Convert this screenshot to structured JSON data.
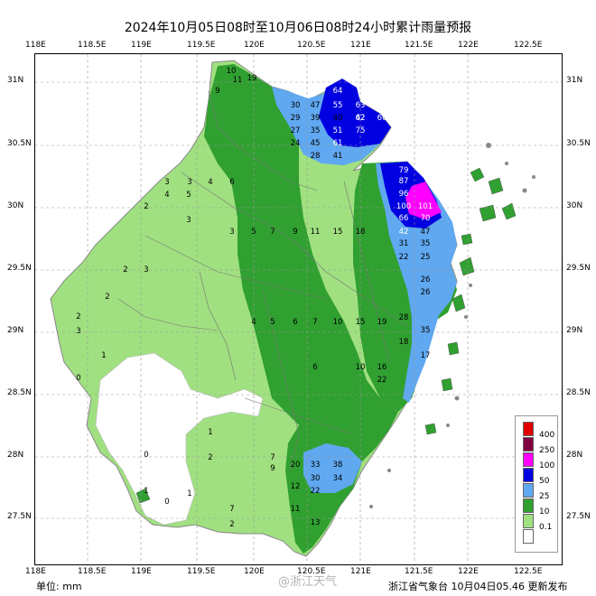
{
  "title": "2024年10月05日08时至10月06日08时24小时累计雨量预报",
  "top_axis": [
    "118E",
    "118.5E",
    "119E",
    "119.5E",
    "120E",
    "120.5E",
    "121E",
    "121.5E",
    "122E",
    "122.5E"
  ],
  "bottom_axis": [
    "118E",
    "118.5E",
    "119E",
    "119.5E",
    "120E",
    "120.5E",
    "121E",
    "121.5E",
    "122E",
    "122.5E"
  ],
  "left_axis": [
    "31N",
    "30.5N",
    "30N",
    "29.5N",
    "29N",
    "28.5N",
    "28N",
    "27.5N"
  ],
  "right_axis": [
    "31N",
    "30.5N",
    "30N",
    "29.5N",
    "29N",
    "28.5N",
    "28N",
    "27.5N"
  ],
  "unit_label": "单位:  mm",
  "source_label": "浙江省气象台  10月04日05.46  更新发布",
  "watermark": "@浙江天气",
  "legend": [
    {
      "label": "400",
      "color": "#e00000"
    },
    {
      "label": "250",
      "color": "#800040"
    },
    {
      "label": "100",
      "color": "#ff00ff"
    },
    {
      "label": "50",
      "color": "#0000e0"
    },
    {
      "label": "25",
      "color": "#60a8f0"
    },
    {
      "label": "10",
      "color": "#30a030"
    },
    {
      "label": "0.1",
      "color": "#a0e080"
    },
    {
      "label": "",
      "color": "#ffffff"
    }
  ],
  "colors": {
    "light_green": "#a0e080",
    "green": "#30a030",
    "light_blue": "#60a8f0",
    "blue": "#0000e0",
    "magenta": "#ff00ff",
    "grid": "#999999"
  },
  "values": [
    [
      "10",
      "255",
      "80"
    ],
    [
      "11",
      "262",
      "90"
    ],
    [
      "19",
      "278",
      "88"
    ],
    [
      "9",
      "240",
      "102"
    ],
    [
      "64",
      "373",
      "102"
    ],
    [
      "55",
      "373",
      "118"
    ],
    [
      "63",
      "398",
      "118"
    ],
    [
      "47",
      "348",
      "118"
    ],
    [
      "30",
      "326",
      "118"
    ],
    [
      "42",
      "398",
      "132"
    ],
    [
      "62",
      "398",
      "132"
    ],
    [
      "60",
      "422",
      "132"
    ],
    [
      "39",
      "348",
      "132"
    ],
    [
      "29",
      "326",
      "132"
    ],
    [
      "40",
      "373",
      "132"
    ],
    [
      "27",
      "326",
      "146"
    ],
    [
      "35",
      "348",
      "146"
    ],
    [
      "51",
      "373",
      "146"
    ],
    [
      "75",
      "398",
      "146"
    ],
    [
      "24",
      "326",
      "160"
    ],
    [
      "45",
      "348",
      "160"
    ],
    [
      "61",
      "373",
      "160"
    ],
    [
      "28",
      "348",
      "174"
    ],
    [
      "41",
      "373",
      "174"
    ],
    [
      "79",
      "446",
      "190"
    ],
    [
      "87",
      "446",
      "202"
    ],
    [
      "96",
      "446",
      "216"
    ],
    [
      "100",
      "446",
      "230"
    ],
    [
      "101",
      "470",
      "230"
    ],
    [
      "66",
      "446",
      "243"
    ],
    [
      "70",
      "470",
      "243"
    ],
    [
      "42",
      "446",
      "258"
    ],
    [
      "47",
      "470",
      "258"
    ],
    [
      "31",
      "446",
      "271"
    ],
    [
      "35",
      "470",
      "271"
    ],
    [
      "22",
      "446",
      "286"
    ],
    [
      "25",
      "470",
      "286"
    ],
    [
      "26",
      "470",
      "311"
    ],
    [
      "26",
      "470",
      "325"
    ],
    [
      "28",
      "446",
      "353"
    ],
    [
      "35",
      "470",
      "367"
    ],
    [
      "33",
      "348",
      "516"
    ],
    [
      "30",
      "348",
      "531"
    ],
    [
      "34",
      "373",
      "531"
    ],
    [
      "38",
      "373",
      "516"
    ],
    [
      "20",
      "326",
      "516"
    ],
    [
      "3",
      "184",
      "203"
    ],
    [
      "3",
      "209",
      "203"
    ],
    [
      "4",
      "232",
      "203"
    ],
    [
      "6",
      "256",
      "203"
    ],
    [
      "5",
      "208",
      "217"
    ],
    [
      "4",
      "184",
      "217"
    ],
    [
      "2",
      "161",
      "230"
    ],
    [
      "3",
      "208",
      "245"
    ],
    [
      "3",
      "256",
      "258"
    ],
    [
      "5",
      "280",
      "258"
    ],
    [
      "7",
      "301",
      "258"
    ],
    [
      "9",
      "326",
      "258"
    ],
    [
      "11",
      "348",
      "258"
    ],
    [
      "15",
      "373",
      "258"
    ],
    [
      "18",
      "398",
      "258"
    ],
    [
      "2",
      "138",
      "300"
    ],
    [
      "3",
      "161",
      "300"
    ],
    [
      "2",
      "118",
      "330"
    ],
    [
      "2",
      "86",
      "352"
    ],
    [
      "3",
      "86",
      "368"
    ],
    [
      "1",
      "114",
      "395"
    ],
    [
      "0",
      "86",
      "420"
    ],
    [
      "4",
      "280",
      "358"
    ],
    [
      "5",
      "301",
      "358"
    ],
    [
      "6",
      "326",
      "358"
    ],
    [
      "7",
      "348",
      "358"
    ],
    [
      "10",
      "373",
      "358"
    ],
    [
      "15",
      "398",
      "358"
    ],
    [
      "19",
      "422",
      "358"
    ],
    [
      "6",
      "348",
      "408"
    ],
    [
      "10",
      "398",
      "408"
    ],
    [
      "16",
      "422",
      "408"
    ],
    [
      "1",
      "232",
      "480"
    ],
    [
      "2",
      "232",
      "508"
    ],
    [
      "7",
      "301",
      "508"
    ],
    [
      "9",
      "301",
      "520"
    ],
    [
      "12",
      "326",
      "540"
    ],
    [
      "22",
      "348",
      "545"
    ],
    [
      "11",
      "326",
      "565"
    ],
    [
      "13",
      "348",
      "580"
    ],
    [
      "7",
      "256",
      "565"
    ],
    [
      "1",
      "209",
      "548"
    ],
    [
      "0",
      "161",
      "505"
    ],
    [
      "1",
      "161",
      "545"
    ],
    [
      "0",
      "184",
      "557"
    ],
    [
      "2",
      "256",
      "582"
    ],
    [
      "22",
      "422",
      "422"
    ],
    [
      "17",
      "470",
      "395"
    ],
    [
      "18",
      "446",
      "380"
    ]
  ]
}
